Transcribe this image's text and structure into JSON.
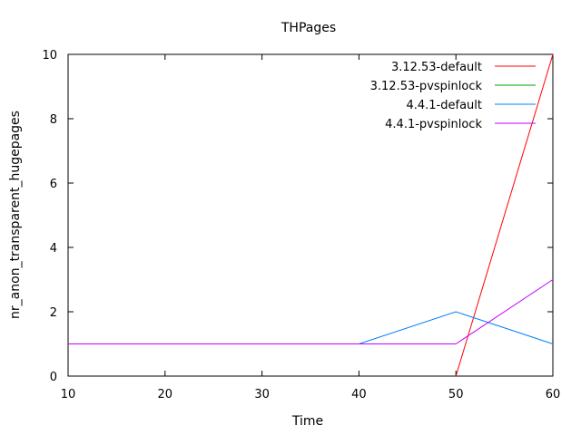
{
  "chart_data": {
    "type": "line",
    "title": "THPages",
    "xlabel": "Time",
    "ylabel": "nr_anon_transparent_hugepages",
    "xlim": [
      10,
      60
    ],
    "ylim": [
      0,
      10
    ],
    "xticks": [
      10,
      20,
      30,
      40,
      50,
      60
    ],
    "yticks": [
      0,
      2,
      4,
      6,
      8,
      10
    ],
    "x": [
      10,
      20,
      30,
      40,
      50,
      60
    ],
    "grid": false,
    "legend_position": "top-right",
    "series": [
      {
        "name": "3.12.53-default",
        "color": "#ff0000",
        "values": [
          null,
          null,
          null,
          null,
          0,
          10
        ]
      },
      {
        "name": "3.12.53-pvspinlock",
        "color": "#00a000",
        "values": [
          null,
          null,
          null,
          null,
          null,
          null
        ]
      },
      {
        "name": "4.4.1-default",
        "color": "#0080ff",
        "values": [
          1,
          1,
          1,
          1,
          2,
          1
        ]
      },
      {
        "name": "4.4.1-pvspinlock",
        "color": "#c000ff",
        "values": [
          1,
          1,
          1,
          1,
          1,
          3
        ]
      }
    ]
  }
}
